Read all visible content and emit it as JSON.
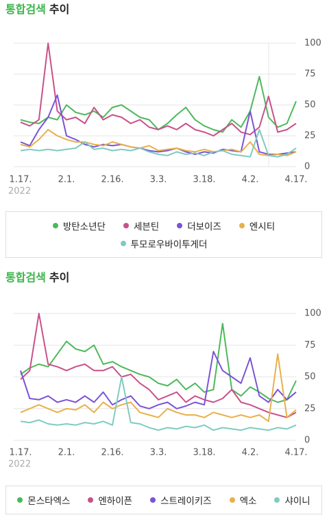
{
  "chart_data": [
    {
      "type": "line",
      "title_accent": "통합검색",
      "title": "추이",
      "categories": [
        "1.17.",
        null,
        null,
        null,
        null,
        "2.1.",
        null,
        null,
        null,
        null,
        "2.16.",
        null,
        null,
        null,
        null,
        "3.3.",
        null,
        null,
        null,
        null,
        "3.18.",
        null,
        null,
        null,
        null,
        "4.2.",
        null,
        null,
        null,
        null,
        "4.17."
      ],
      "x_year": "2022",
      "ylim": [
        0,
        100
      ],
      "yticks": [
        0,
        25,
        50,
        75,
        100
      ],
      "grid": true,
      "series": [
        {
          "name": "방탄소년단",
          "color": "#4cb85a",
          "values": [
            38,
            36,
            35,
            40,
            38,
            50,
            44,
            42,
            45,
            40,
            48,
            50,
            45,
            40,
            38,
            30,
            35,
            42,
            48,
            38,
            33,
            30,
            28,
            38,
            32,
            45,
            73,
            40,
            32,
            35,
            53
          ]
        },
        {
          "name": "세븐틴",
          "color": "#c9508a",
          "values": [
            36,
            33,
            38,
            100,
            45,
            38,
            40,
            35,
            48,
            38,
            42,
            40,
            35,
            38,
            32,
            30,
            33,
            30,
            35,
            30,
            28,
            25,
            30,
            35,
            28,
            26,
            32,
            57,
            28,
            30,
            35
          ]
        },
        {
          "name": "더보이즈",
          "color": "#7b52d6",
          "values": [
            20,
            17,
            30,
            40,
            58,
            25,
            22,
            18,
            16,
            18,
            17,
            18,
            16,
            15,
            13,
            12,
            13,
            15,
            12,
            10,
            12,
            11,
            14,
            13,
            12,
            45,
            12,
            10,
            10,
            11,
            12
          ]
        },
        {
          "name": "엔시티",
          "color": "#e8b04a",
          "values": [
            18,
            16,
            22,
            30,
            25,
            22,
            20,
            20,
            18,
            17,
            20,
            18,
            16,
            15,
            17,
            13,
            14,
            15,
            13,
            12,
            14,
            12,
            13,
            14,
            12,
            20,
            10,
            9,
            10,
            9,
            12
          ]
        },
        {
          "name": "투모로우바이투게더",
          "color": "#7ecbc0",
          "values": [
            13,
            14,
            13,
            14,
            13,
            14,
            15,
            20,
            14,
            15,
            13,
            14,
            13,
            15,
            12,
            10,
            9,
            12,
            10,
            11,
            9,
            12,
            13,
            10,
            9,
            8,
            30,
            9,
            8,
            10,
            15
          ]
        }
      ]
    },
    {
      "type": "line",
      "title_accent": "통합검색",
      "title": "추이",
      "categories": [
        "1.17.",
        null,
        null,
        null,
        null,
        "2.1.",
        null,
        null,
        null,
        null,
        "2.16.",
        null,
        null,
        null,
        null,
        "3.3.",
        null,
        null,
        null,
        null,
        "3.18.",
        null,
        null,
        null,
        null,
        "4.2.",
        null,
        null,
        null,
        null,
        "4.17."
      ],
      "x_year": "2022",
      "ylim": [
        0,
        100
      ],
      "yticks": [
        0,
        25,
        50,
        75,
        100
      ],
      "grid": true,
      "series": [
        {
          "name": "몬스타엑스",
          "color": "#4cb85a",
          "values": [
            52,
            57,
            60,
            58,
            68,
            78,
            72,
            70,
            75,
            60,
            62,
            58,
            55,
            52,
            50,
            45,
            43,
            48,
            40,
            45,
            38,
            40,
            92,
            40,
            35,
            42,
            38,
            33,
            30,
            32,
            47
          ]
        },
        {
          "name": "엔하이픈",
          "color": "#c9508a",
          "values": [
            48,
            55,
            100,
            60,
            58,
            55,
            58,
            60,
            55,
            55,
            58,
            50,
            52,
            45,
            40,
            32,
            35,
            38,
            30,
            35,
            32,
            30,
            33,
            40,
            30,
            28,
            25,
            22,
            20,
            18,
            22
          ]
        },
        {
          "name": "스트레이키즈",
          "color": "#7b52d6",
          "values": [
            55,
            33,
            32,
            35,
            30,
            32,
            30,
            35,
            30,
            38,
            28,
            32,
            35,
            27,
            25,
            28,
            30,
            25,
            27,
            30,
            28,
            70,
            55,
            50,
            45,
            65,
            35,
            30,
            40,
            32,
            38
          ]
        },
        {
          "name": "엑소",
          "color": "#e8b04a",
          "values": [
            22,
            25,
            28,
            25,
            22,
            25,
            24,
            28,
            22,
            30,
            25,
            28,
            30,
            22,
            20,
            18,
            25,
            22,
            20,
            20,
            18,
            22,
            20,
            18,
            20,
            18,
            20,
            15,
            68,
            18,
            24
          ]
        },
        {
          "name": "샤이니",
          "color": "#7ecbc0",
          "values": [
            15,
            14,
            16,
            13,
            12,
            13,
            12,
            14,
            13,
            15,
            12,
            50,
            14,
            13,
            10,
            8,
            10,
            9,
            11,
            10,
            12,
            8,
            10,
            9,
            8,
            10,
            9,
            8,
            10,
            9,
            12
          ]
        }
      ]
    }
  ]
}
